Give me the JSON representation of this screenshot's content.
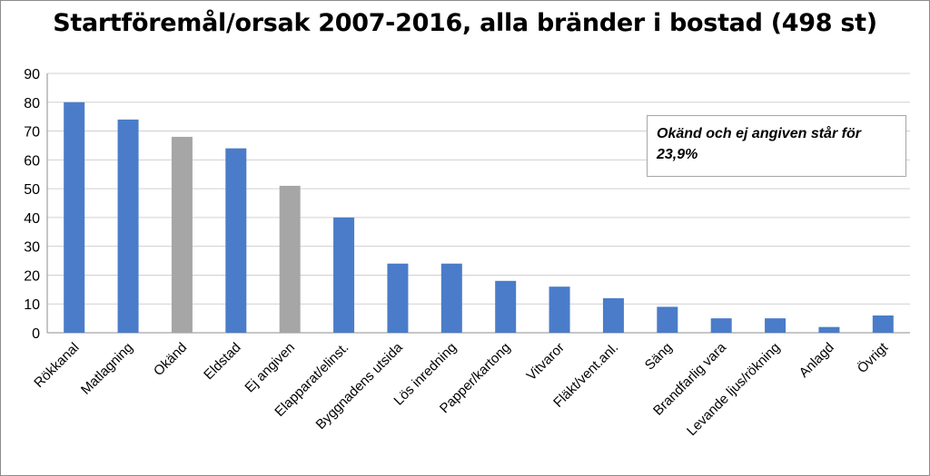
{
  "chart_data": {
    "type": "bar",
    "title": "Startföremål/orsak 2007-2016, alla bränder i bostad (498 st)",
    "categories": [
      "Rökkanal",
      "Matlagning",
      "Okänd",
      "Eldstad",
      "Ej angiven",
      "Elapparat/elinst.",
      "Byggnadens utsida",
      "Lös inredning",
      "Papper/kartong",
      "Vitvaror",
      "Fläkt/vent.anl.",
      "Säng",
      "Brandfarlig vara",
      "Levande ljus/rökning",
      "Anlagd",
      "Övrigt"
    ],
    "values": [
      80,
      74,
      68,
      64,
      51,
      40,
      24,
      24,
      18,
      16,
      12,
      9,
      5,
      5,
      2,
      6
    ],
    "bar_colors": [
      "#4a7cc9",
      "#4a7cc9",
      "#a6a6a6",
      "#4a7cc9",
      "#a6a6a6",
      "#4a7cc9",
      "#4a7cc9",
      "#4a7cc9",
      "#4a7cc9",
      "#4a7cc9",
      "#4a7cc9",
      "#4a7cc9",
      "#4a7cc9",
      "#4a7cc9",
      "#4a7cc9",
      "#4a7cc9"
    ],
    "xlabel": "",
    "ylabel": "",
    "ylim": [
      0,
      90
    ],
    "yticks": [
      0,
      10,
      20,
      30,
      40,
      50,
      60,
      70,
      80,
      90
    ],
    "grid": true,
    "legend": "none",
    "annotation": "Okänd och ej angiven står för 23,9%"
  }
}
